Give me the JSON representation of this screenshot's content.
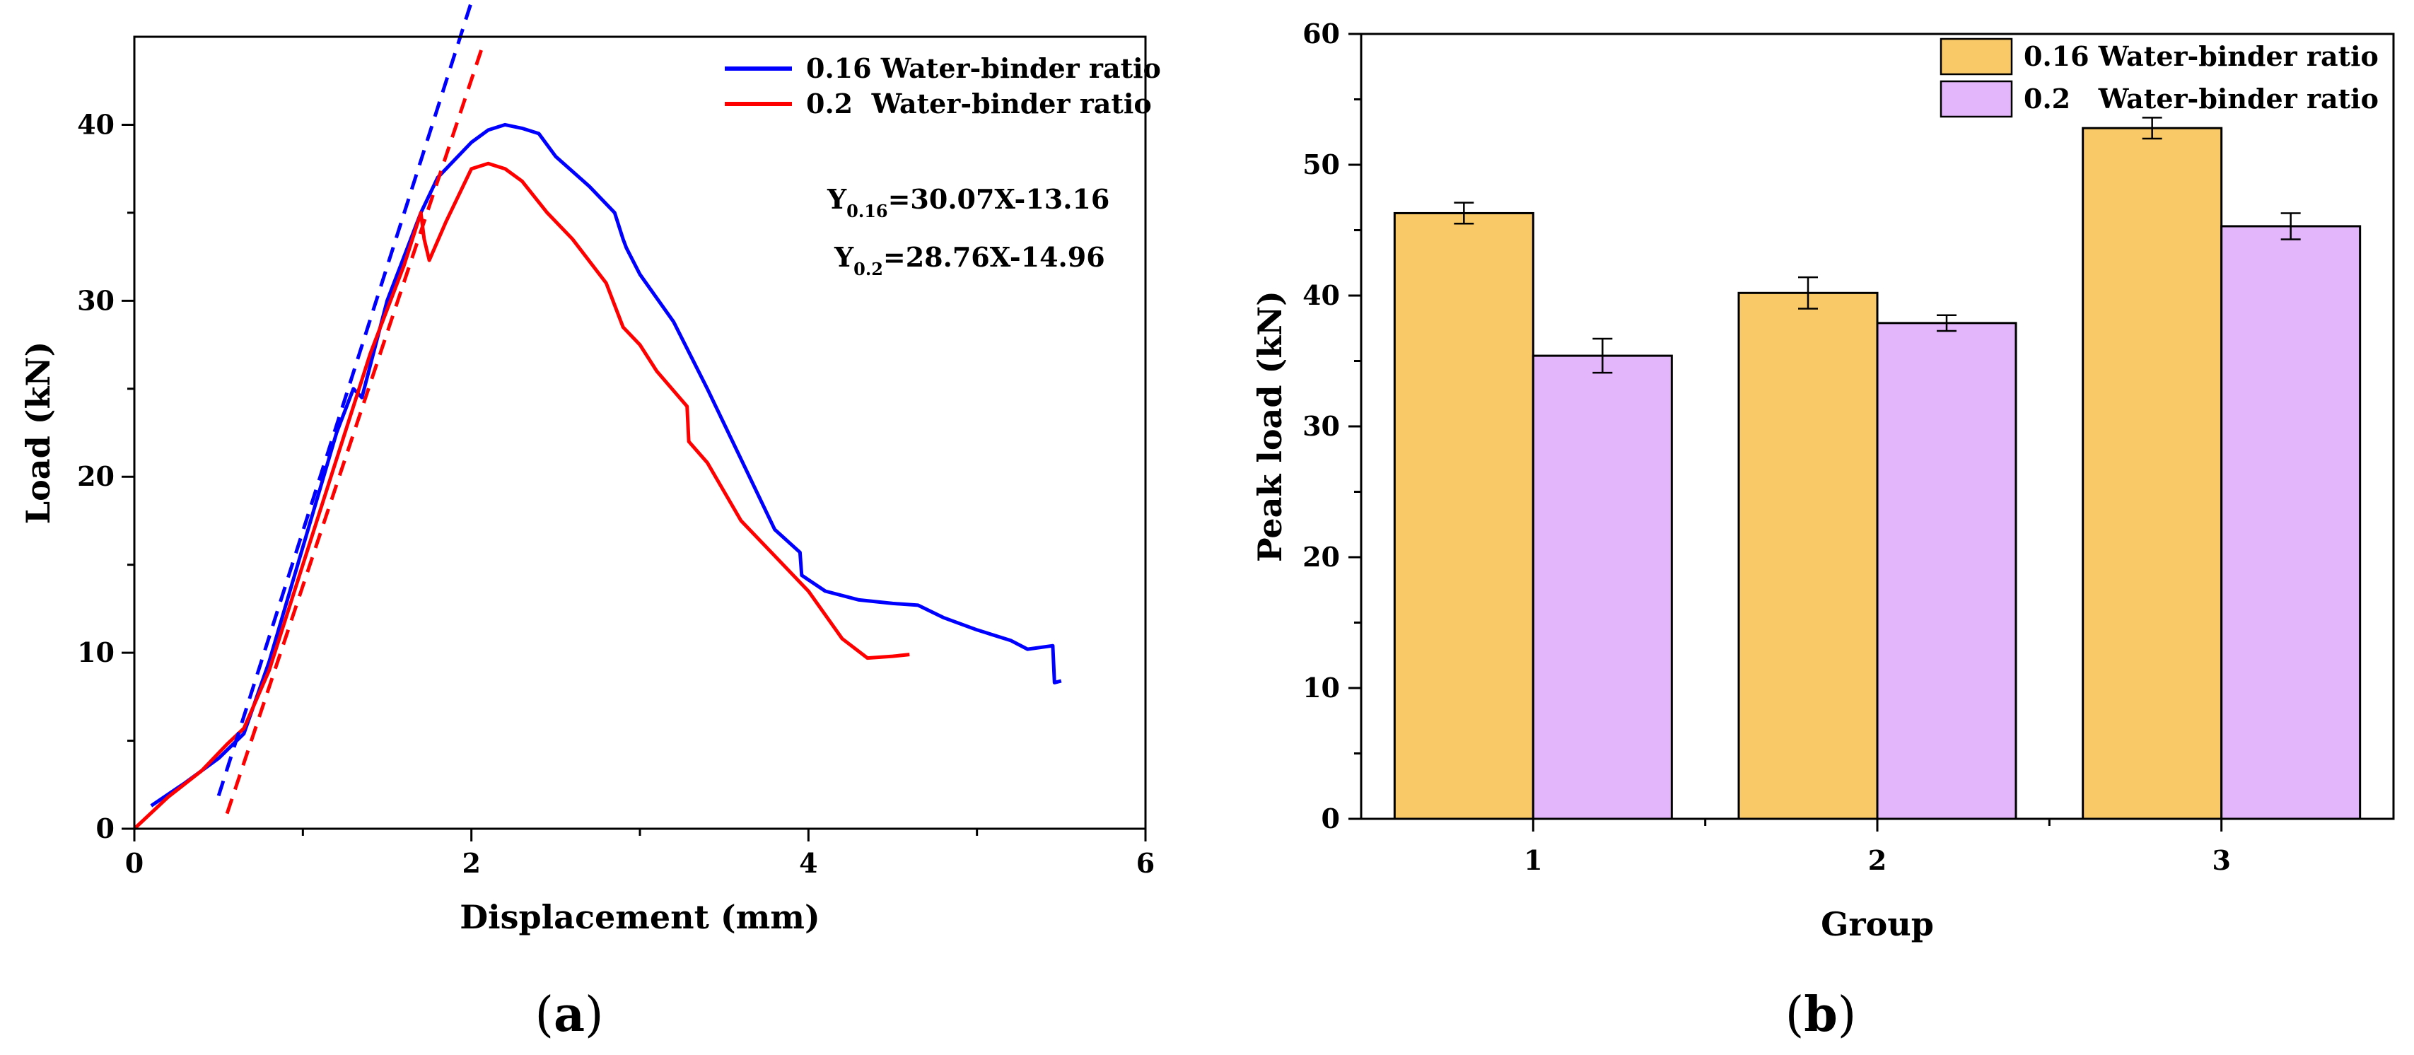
{
  "chart_data": [
    {
      "panel": "a",
      "type": "line",
      "title": "",
      "xlabel": "Displacement (mm)",
      "ylabel": "Load (kN)",
      "xlim": [
        0,
        6
      ],
      "ylim": [
        0,
        45
      ],
      "xticks": [
        0,
        2,
        4,
        6
      ],
      "yticks": [
        0,
        10,
        20,
        30,
        40
      ],
      "grid": false,
      "legend_position": "top-right",
      "series": [
        {
          "name": "0.16 Water-binder ratio",
          "color": "#0000ff",
          "x": [
            0.1,
            0.3,
            0.5,
            0.65,
            0.8,
            1.0,
            1.2,
            1.3,
            1.35,
            1.5,
            1.7,
            1.8,
            2.0,
            2.1,
            2.2,
            2.3,
            2.4,
            2.5,
            2.7,
            2.85,
            2.9,
            2.92,
            3.0,
            3.2,
            3.4,
            3.6,
            3.8,
            3.95,
            3.96,
            4.1,
            4.3,
            4.5,
            4.65,
            4.8,
            5.0,
            5.2,
            5.3,
            5.45,
            5.46,
            5.5
          ],
          "y": [
            1.3,
            2.6,
            4.0,
            5.4,
            9.5,
            16.0,
            22.5,
            25.0,
            24.5,
            30.0,
            35.0,
            37.0,
            39.0,
            39.7,
            40.0,
            39.8,
            39.5,
            38.2,
            36.5,
            35.0,
            33.5,
            33.0,
            31.5,
            28.8,
            25.0,
            21.0,
            17.0,
            15.7,
            14.4,
            13.5,
            13.0,
            12.8,
            12.7,
            12.0,
            11.3,
            10.7,
            10.2,
            10.4,
            8.3,
            8.4
          ]
        },
        {
          "name": "0.2  Water-binder ratio",
          "color": "#ff0000",
          "x": [
            0.0,
            0.2,
            0.4,
            0.55,
            0.65,
            0.8,
            1.0,
            1.2,
            1.4,
            1.6,
            1.7,
            1.72,
            1.75,
            1.85,
            2.0,
            2.1,
            2.2,
            2.3,
            2.45,
            2.6,
            2.8,
            2.9,
            3.0,
            3.1,
            3.28,
            3.29,
            3.4,
            3.6,
            3.8,
            4.0,
            4.2,
            4.35,
            4.5,
            4.6
          ],
          "y": [
            0.0,
            1.8,
            3.3,
            4.8,
            5.7,
            9.0,
            15.0,
            21.0,
            27.0,
            32.0,
            35.0,
            33.5,
            32.3,
            34.5,
            37.5,
            37.8,
            37.5,
            36.8,
            35.0,
            33.5,
            31.0,
            28.5,
            27.5,
            26.0,
            24.0,
            22.0,
            20.8,
            17.5,
            15.5,
            13.5,
            10.8,
            9.7,
            9.8,
            9.9
          ]
        }
      ],
      "fit_lines": [
        {
          "color": "#0000ff",
          "slope": 30.07,
          "intercept": -13.16,
          "x_range": [
            0.5,
            2.0
          ]
        },
        {
          "color": "#ff0000",
          "slope": 28.76,
          "intercept": -14.96,
          "x_range": [
            0.55,
            2.07
          ]
        }
      ],
      "annotations": [
        {
          "base": "Y",
          "sub": "0.16",
          "rest": "=30.07X-13.16"
        },
        {
          "base": "Y",
          "sub": "0.2",
          "rest": "=28.76X-14.96"
        }
      ]
    },
    {
      "panel": "b",
      "type": "bar",
      "title": "",
      "xlabel": "Group",
      "ylabel": "Peak load (kN)",
      "categories": [
        "1",
        "2",
        "3"
      ],
      "ylim": [
        0,
        60
      ],
      "yticks": [
        0,
        10,
        20,
        30,
        40,
        50,
        60
      ],
      "grid": false,
      "legend_position": "top-right",
      "series": [
        {
          "name": "0.16 Water-binder ratio",
          "color": "#f9c867",
          "values": [
            46.3,
            40.2,
            52.8
          ],
          "errors": [
            0.8,
            1.2,
            0.8
          ]
        },
        {
          "name": "0.2   Water-binder ratio",
          "color": "#e3b5fa",
          "values": [
            35.4,
            37.9,
            45.3
          ],
          "errors": [
            1.3,
            0.6,
            1.0
          ]
        }
      ]
    }
  ],
  "panels": {
    "a": {
      "open": "(",
      "letter": "a",
      "close": ")"
    },
    "b": {
      "open": "(",
      "letter": "b",
      "close": ")"
    }
  }
}
